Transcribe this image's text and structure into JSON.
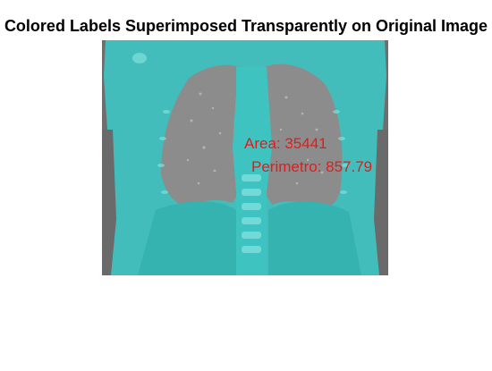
{
  "figure": {
    "title": "Colored Labels Superimposed Transparently on Original Image"
  },
  "image": {
    "label_overlay_color": "#3fc3c1",
    "lung_region_color": "#8e8e8e",
    "background_tissue_color": "#707070"
  },
  "annotations": {
    "area_text": "Area: 35441",
    "perimeter_text": "Perimetro: 857.79",
    "text_color": "#e51a1a"
  }
}
